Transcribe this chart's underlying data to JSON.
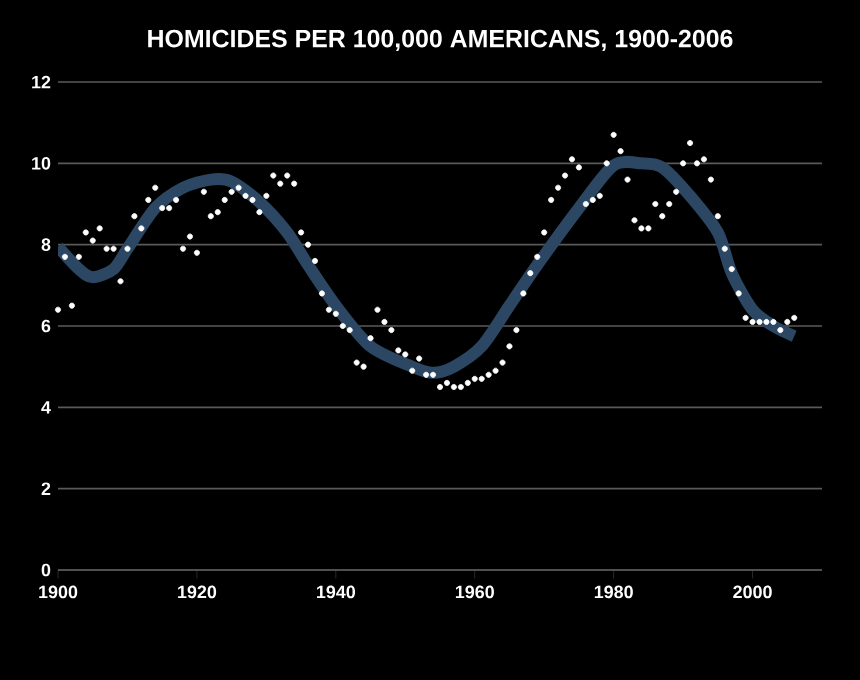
{
  "chart_data": {
    "type": "scatter",
    "title": "HOMICIDES PER 100,000 AMERICANS, 1900-2006",
    "xlim": [
      1900,
      2010
    ],
    "xticks": [
      1900,
      1920,
      1940,
      1960,
      1980,
      2000
    ],
    "ylim": [
      0,
      12
    ],
    "yticks": [
      0,
      2,
      4,
      6,
      8,
      10,
      12
    ],
    "grid": "y",
    "series": [
      {
        "marker": "circle",
        "color": "#ffffff",
        "x": [
          1900,
          1901,
          1902,
          1903,
          1904,
          1905,
          1906,
          1907,
          1908,
          1909,
          1910,
          1911,
          1912,
          1913,
          1914,
          1915,
          1916,
          1917,
          1918,
          1919,
          1920,
          1921,
          1922,
          1923,
          1924,
          1925,
          1926,
          1927,
          1928,
          1929,
          1930,
          1931,
          1932,
          1933,
          1934,
          1935,
          1936,
          1937,
          1938,
          1939,
          1940,
          1941,
          1942,
          1943,
          1944,
          1945,
          1946,
          1947,
          1948,
          1949,
          1950,
          1951,
          1952,
          1953,
          1954,
          1955,
          1956,
          1957,
          1958,
          1959,
          1960,
          1961,
          1962,
          1963,
          1964,
          1965,
          1966,
          1967,
          1968,
          1969,
          1970,
          1971,
          1972,
          1973,
          1974,
          1975,
          1976,
          1977,
          1978,
          1979,
          1980,
          1981,
          1982,
          1983,
          1984,
          1985,
          1986,
          1987,
          1988,
          1989,
          1990,
          1991,
          1992,
          1993,
          1994,
          1995,
          1996,
          1997,
          1998,
          1999,
          2000,
          2001,
          2002,
          2003,
          2004,
          2005,
          2006
        ],
        "values": [
          6.4,
          7.7,
          6.5,
          7.7,
          8.3,
          8.1,
          8.4,
          7.9,
          7.9,
          7.1,
          7.9,
          8.7,
          8.4,
          9.1,
          9.4,
          8.9,
          8.9,
          9.1,
          7.9,
          8.2,
          7.8,
          9.3,
          8.7,
          8.8,
          9.1,
          9.3,
          9.4,
          9.2,
          9.1,
          8.8,
          9.2,
          9.7,
          9.5,
          9.7,
          9.5,
          8.3,
          8.0,
          7.6,
          6.8,
          6.4,
          6.3,
          6.0,
          5.9,
          5.1,
          5.0,
          5.7,
          6.4,
          6.1,
          5.9,
          5.4,
          5.3,
          4.9,
          5.2,
          4.8,
          4.8,
          4.5,
          4.6,
          4.5,
          4.5,
          4.6,
          4.7,
          4.7,
          4.8,
          4.9,
          5.1,
          5.5,
          5.9,
          6.8,
          7.3,
          7.7,
          8.3,
          9.1,
          9.4,
          9.7,
          10.1,
          9.9,
          9.0,
          9.1,
          9.2,
          10.0,
          10.7,
          10.3,
          9.6,
          8.6,
          8.4,
          8.4,
          9.0,
          8.7,
          9.0,
          9.3,
          10.0,
          10.5,
          10.0,
          10.1,
          9.6,
          8.7,
          7.9,
          7.4,
          6.8,
          6.2,
          6.1,
          6.1,
          6.1,
          6.1,
          5.9,
          6.1,
          6.2
        ]
      },
      {
        "type": "line",
        "marker": "none",
        "color": "#2b4763",
        "x": [
          1900,
          1903,
          1905,
          1908,
          1910,
          1914,
          1918,
          1922,
          1925,
          1929,
          1933,
          1936,
          1940,
          1945,
          1951,
          1954,
          1957,
          1961,
          1965,
          1969,
          1975,
          1980,
          1984,
          1987,
          1991,
          1995,
          1997,
          2000,
          2003,
          2006
        ],
        "values": [
          7.95,
          7.4,
          7.2,
          7.4,
          7.9,
          8.9,
          9.4,
          9.6,
          9.55,
          9.05,
          8.3,
          7.5,
          6.5,
          5.5,
          5.0,
          4.85,
          5.0,
          5.5,
          6.5,
          7.5,
          8.9,
          9.95,
          10.0,
          9.9,
          9.2,
          8.3,
          7.3,
          6.4,
          6.0,
          5.75
        ]
      }
    ]
  }
}
